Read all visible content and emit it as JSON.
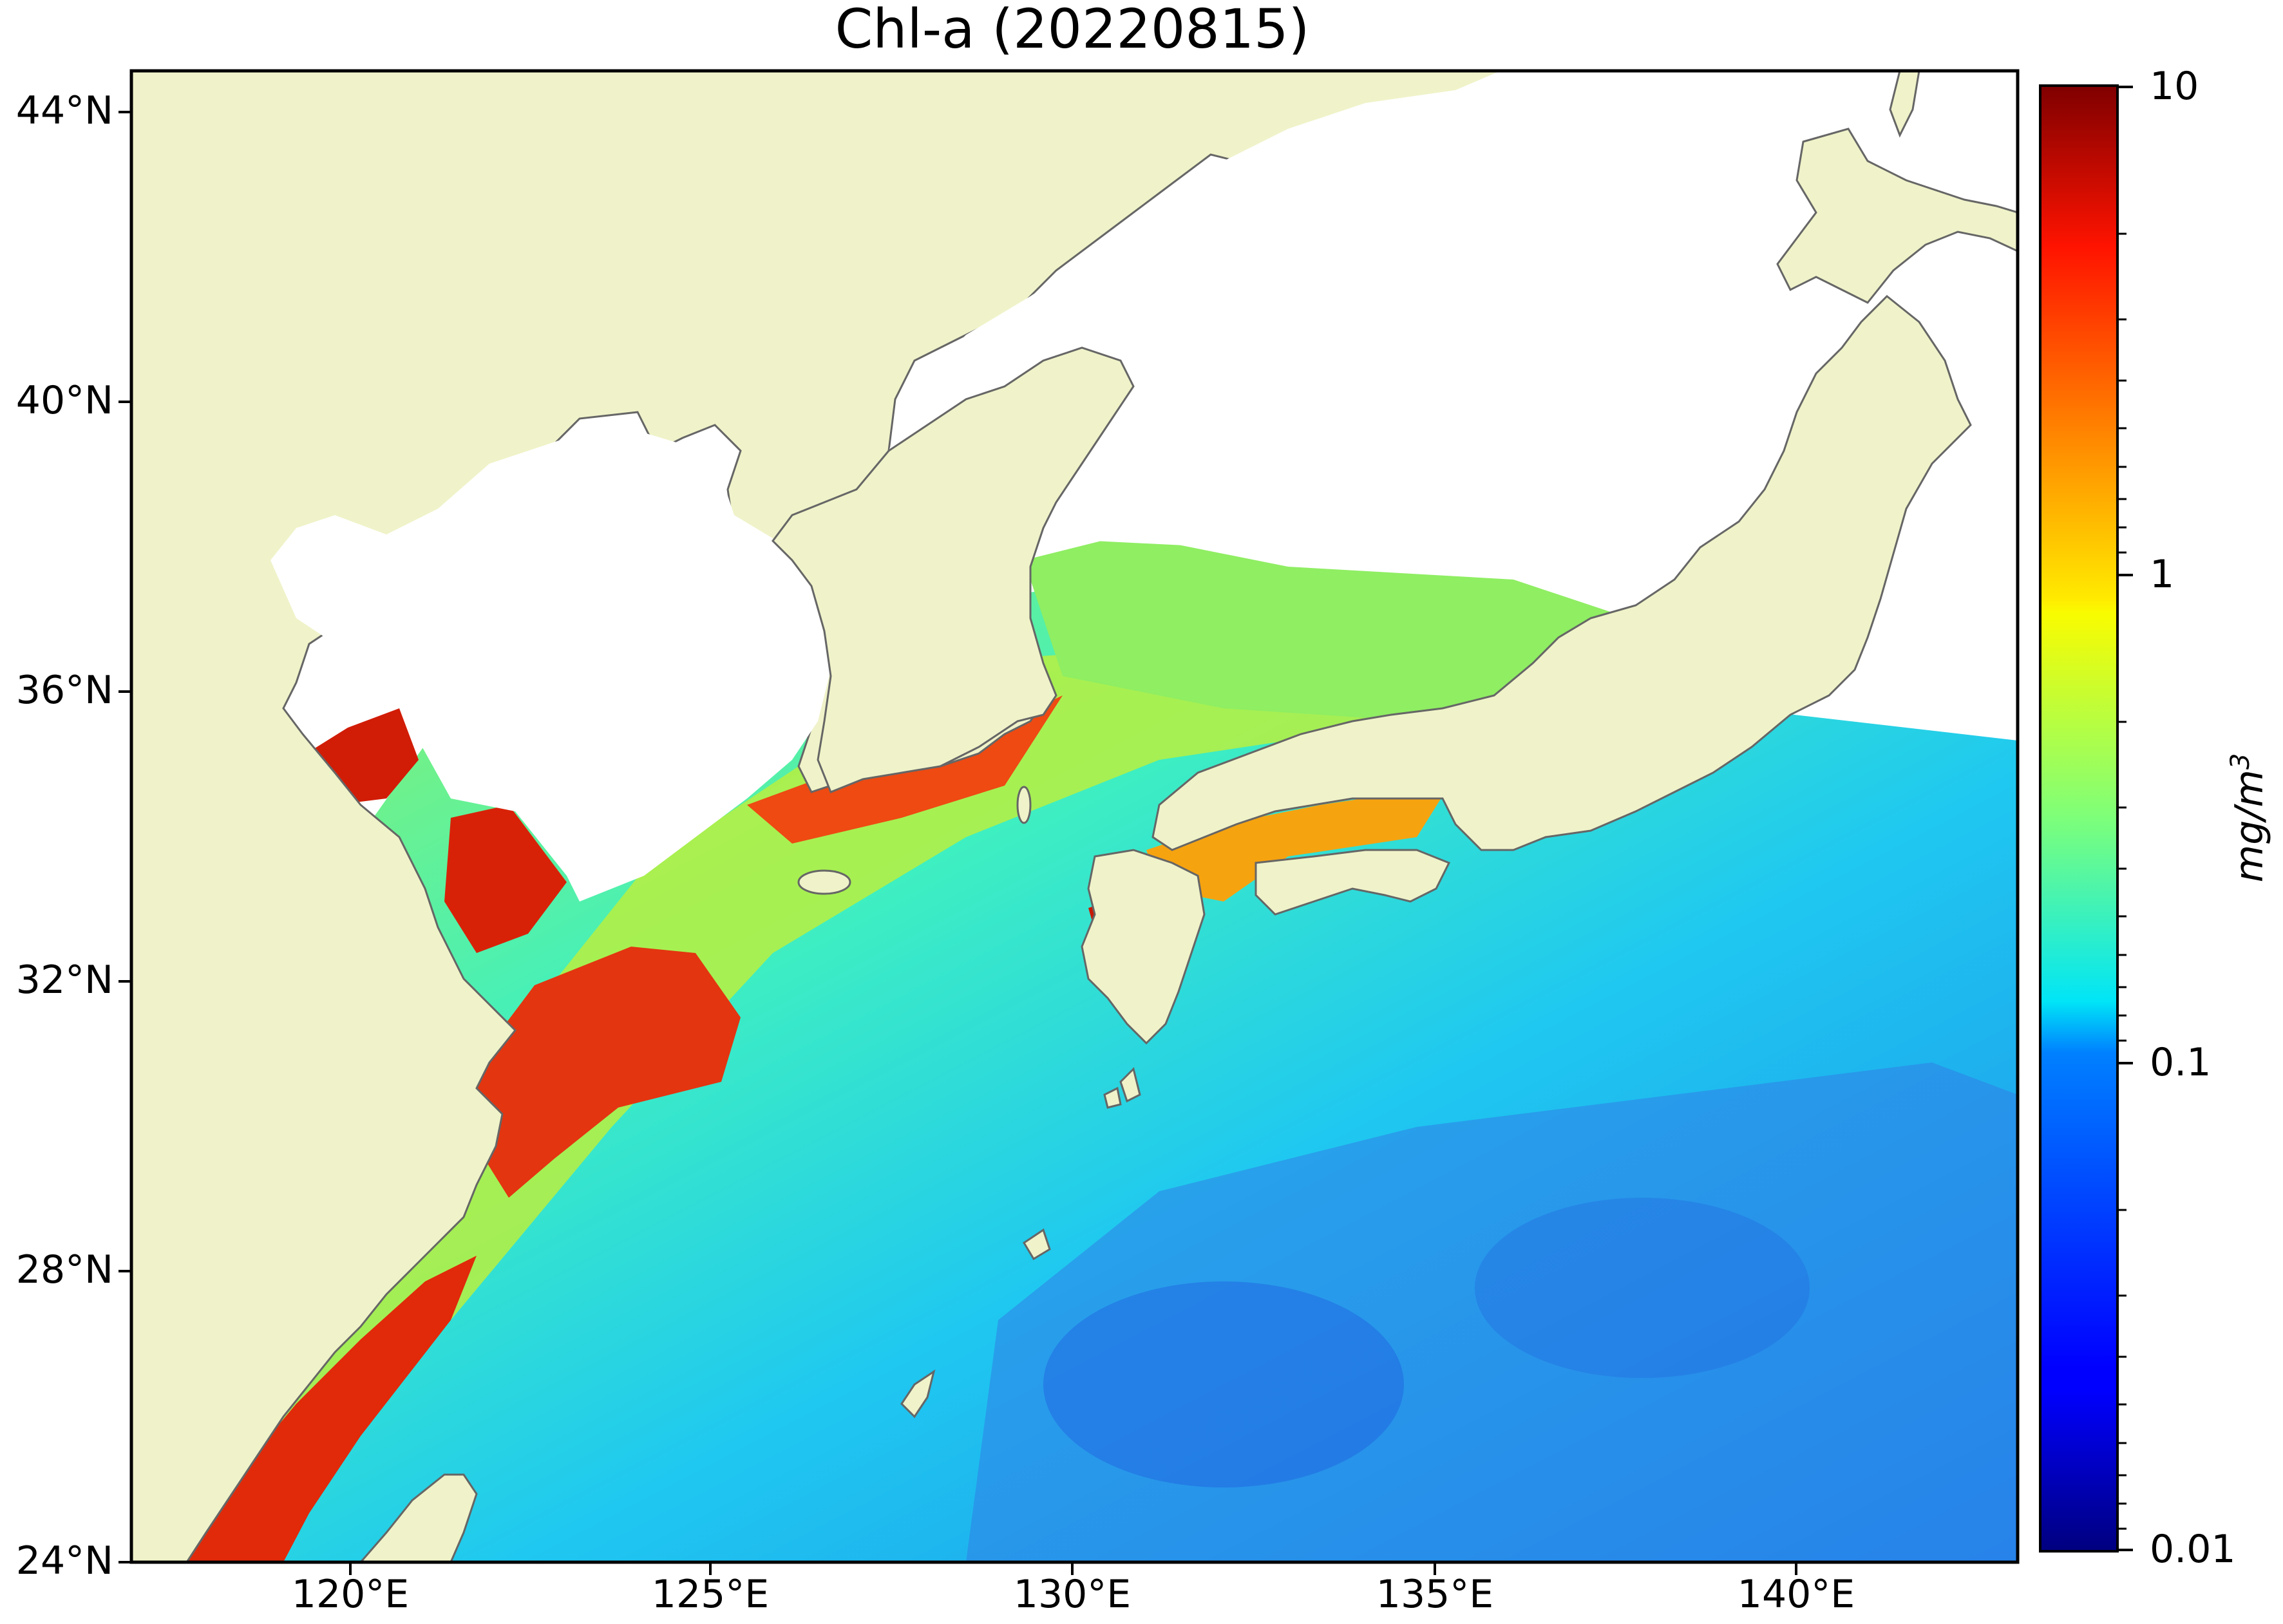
{
  "title": "Chl-a (20220815)",
  "map": {
    "lon_range": [
      117,
      143
    ],
    "lat_range": [
      24,
      44.5
    ],
    "lat_ticks": [
      {
        "value": 44,
        "label": "44°N"
      },
      {
        "value": 40,
        "label": "40°N"
      },
      {
        "value": 36,
        "label": "36°N"
      },
      {
        "value": 32,
        "label": "32°N"
      },
      {
        "value": 28,
        "label": "28°N"
      },
      {
        "value": 24,
        "label": "24°N"
      }
    ],
    "lon_ticks": [
      {
        "value": 120,
        "label": "120°E"
      },
      {
        "value": 125,
        "label": "125°E"
      },
      {
        "value": 130,
        "label": "130°E"
      },
      {
        "value": 135,
        "label": "135°E"
      },
      {
        "value": 140,
        "label": "140°E"
      }
    ],
    "land_color": "#f0f3c9",
    "coast_color": "#666666",
    "missing_color": "#ffffff"
  },
  "colorbar": {
    "scale": "log",
    "range": [
      0.01,
      10
    ],
    "ticks": [
      "10",
      "1",
      "0.1",
      "0.01"
    ],
    "unit_base": "mg/m",
    "unit_exp": "3",
    "colormap": "jet"
  }
}
